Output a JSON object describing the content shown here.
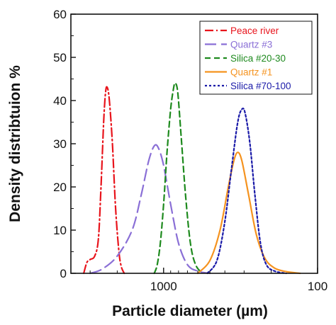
{
  "chart_data": {
    "type": "line",
    "xlabel": "Particle diameter (µm)",
    "ylabel": "Density distribtuion %",
    "x_scale": "log",
    "x_reversed": true,
    "xlim": [
      4000,
      100
    ],
    "ylim": [
      0,
      60
    ],
    "x_ticks": [
      {
        "value": 1000,
        "label": "1000"
      },
      {
        "value": 100,
        "label": "100"
      }
    ],
    "y_ticks": [
      0,
      10,
      20,
      30,
      40,
      50,
      60
    ],
    "grid": false,
    "legend_position": "top-right",
    "series": [
      {
        "name": "Peace river",
        "color": "#e8141c",
        "dash": "dashdot",
        "points": [
          [
            3300,
            0
          ],
          [
            3150,
            2.5
          ],
          [
            3000,
            3.2
          ],
          [
            2800,
            4
          ],
          [
            2650,
            8
          ],
          [
            2550,
            20
          ],
          [
            2450,
            35
          ],
          [
            2380,
            42
          ],
          [
            2320,
            43
          ],
          [
            2250,
            40
          ],
          [
            2150,
            30
          ],
          [
            2050,
            15
          ],
          [
            1950,
            5
          ],
          [
            1880,
            1.5
          ],
          [
            1800,
            0
          ]
        ]
      },
      {
        "name": "Quartz #3",
        "color": "#8a6fd6",
        "dash": "longdash",
        "points": [
          [
            3000,
            0
          ],
          [
            2500,
            1
          ],
          [
            2000,
            4
          ],
          [
            1600,
            10
          ],
          [
            1400,
            18
          ],
          [
            1250,
            26
          ],
          [
            1150,
            29.5
          ],
          [
            1080,
            29
          ],
          [
            1000,
            25
          ],
          [
            900,
            16
          ],
          [
            800,
            7
          ],
          [
            700,
            2
          ],
          [
            600,
            0.5
          ],
          [
            500,
            0
          ]
        ]
      },
      {
        "name": "Silica #20-30",
        "color": "#1e8a1e",
        "dash": "dash",
        "points": [
          [
            1150,
            0
          ],
          [
            1100,
            2
          ],
          [
            1050,
            7
          ],
          [
            1000,
            16
          ],
          [
            950,
            28
          ],
          [
            900,
            38
          ],
          [
            860,
            43
          ],
          [
            840,
            44
          ],
          [
            810,
            42
          ],
          [
            770,
            32
          ],
          [
            720,
            18
          ],
          [
            670,
            7
          ],
          [
            620,
            2
          ],
          [
            560,
            0
          ]
        ]
      },
      {
        "name": "Quartz #1",
        "color": "#f5931f",
        "dash": "solid",
        "points": [
          [
            600,
            0
          ],
          [
            500,
            3
          ],
          [
            430,
            10
          ],
          [
            380,
            20
          ],
          [
            350,
            26
          ],
          [
            330,
            28
          ],
          [
            310,
            26
          ],
          [
            280,
            18
          ],
          [
            250,
            9
          ],
          [
            220,
            3.5
          ],
          [
            190,
            1.2
          ],
          [
            160,
            0.4
          ],
          [
            130,
            0
          ]
        ]
      },
      {
        "name": "Silica #70-100",
        "color": "#1a1aa8",
        "dash": "dot",
        "points": [
          [
            520,
            0
          ],
          [
            450,
            3
          ],
          [
            400,
            12
          ],
          [
            360,
            25
          ],
          [
            330,
            35
          ],
          [
            310,
            38
          ],
          [
            295,
            37
          ],
          [
            275,
            30
          ],
          [
            255,
            18
          ],
          [
            235,
            7
          ],
          [
            215,
            2
          ],
          [
            190,
            0.5
          ],
          [
            160,
            0
          ]
        ]
      }
    ]
  }
}
